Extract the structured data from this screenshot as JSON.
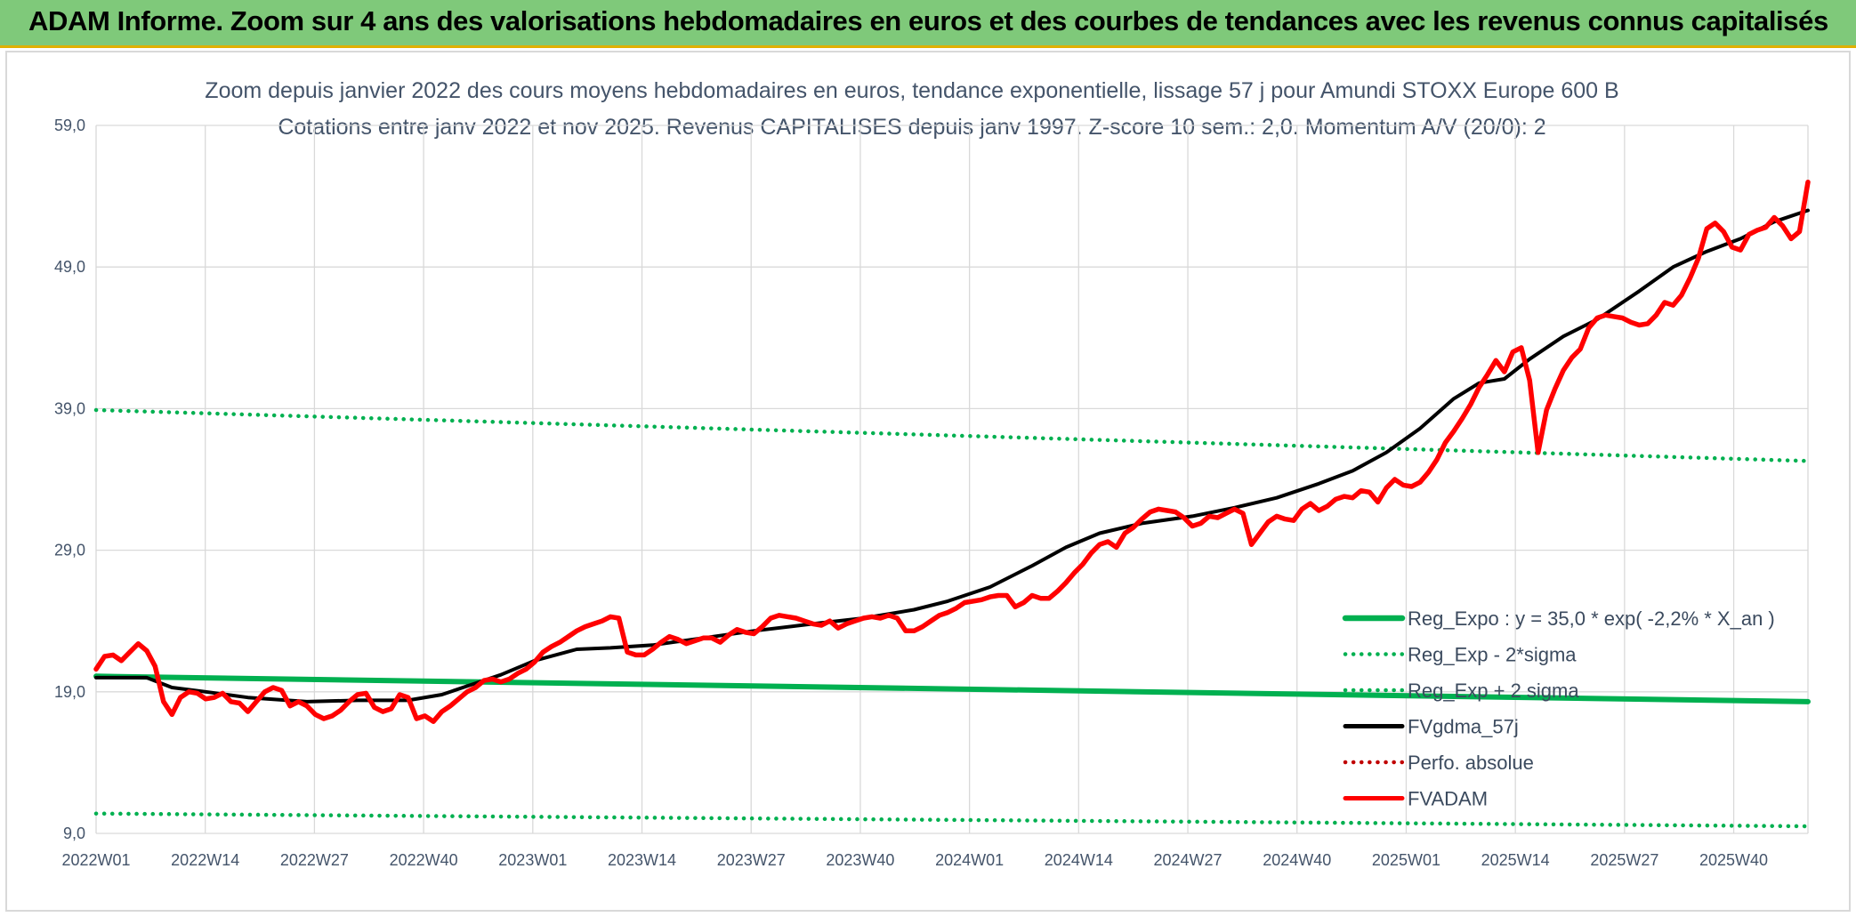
{
  "banner": {
    "title": "ADAM Informe. Zoom sur 4 ans des valorisations hebdomadaires en euros et des courbes de tendances avec les revenus connus capitalisés"
  },
  "colors": {
    "banner_bg": "#7fc97a",
    "reg_expo": "#00b050",
    "fvgdma": "#000000",
    "fvadam": "#ff0000",
    "perfo": "#c00000",
    "grid": "#d9d9d9",
    "text": "#44546a"
  },
  "chart_data": {
    "type": "line",
    "title": "Zoom depuis janvier 2022 des cours moyens hebdomadaires en euros, tendance exponentielle, lissage 57 j pour Amundi STOXX Europe 600 B",
    "subtitle": "Cotations entre janv 2022 et nov 2025. Revenus CAPITALISES depuis janv 1997. Z-score 10 sem.: 2,0. Momentum A/V (20/0): 2",
    "ylim": [
      9,
      59
    ],
    "yticks": [
      "59,0",
      "49,0",
      "39,0",
      "29,0",
      "19,0",
      "9,0"
    ],
    "xticks": [
      "2022W01",
      "2022W14",
      "2022W27",
      "2022W40",
      "2023W01",
      "2023W14",
      "2023W27",
      "2023W40",
      "2024W01",
      "2024W14",
      "2024W27",
      "2024W40",
      "2025W01",
      "2025W14",
      "2025W27",
      "2025W40"
    ],
    "grid": true,
    "legend_position": "right",
    "week_count": 204,
    "series": [
      {
        "name": "Reg_Expo : y = 35,0 * exp( -2,2% *  X_an )",
        "style": "solid",
        "color": "#00b050",
        "points": [
          [
            0,
            20.1
          ],
          [
            203,
            18.3
          ]
        ]
      },
      {
        "name": "Reg_Exp - 2*sigma",
        "style": "dotted",
        "color": "#00b050",
        "points": [
          [
            0,
            10.4
          ],
          [
            203,
            9.5
          ]
        ]
      },
      {
        "name": "Reg_Exp + 2 sigma",
        "style": "dotted",
        "color": "#00b050",
        "points": [
          [
            0,
            38.9
          ],
          [
            203,
            35.3
          ]
        ]
      },
      {
        "name": "FVgdma_57j",
        "style": "solid",
        "color": "#000000",
        "points": [
          [
            0,
            20
          ],
          [
            6,
            20
          ],
          [
            9,
            19.3
          ],
          [
            13,
            19
          ],
          [
            18,
            18.6
          ],
          [
            25,
            18.3
          ],
          [
            31,
            18.4
          ],
          [
            37,
            18.4
          ],
          [
            41,
            18.8
          ],
          [
            44,
            19.4
          ],
          [
            48,
            20.2
          ],
          [
            52,
            21.2
          ],
          [
            57,
            22
          ],
          [
            61,
            22.1
          ],
          [
            66,
            22.3
          ],
          [
            72,
            22.8
          ],
          [
            78,
            23.3
          ],
          [
            85,
            23.8
          ],
          [
            91,
            24.2
          ],
          [
            97,
            24.8
          ],
          [
            101,
            25.4
          ],
          [
            106,
            26.4
          ],
          [
            111,
            27.9
          ],
          [
            115,
            29.2
          ],
          [
            119,
            30.2
          ],
          [
            124,
            30.9
          ],
          [
            130,
            31.4
          ],
          [
            135,
            32
          ],
          [
            140,
            32.7
          ],
          [
            145,
            33.7
          ],
          [
            149,
            34.6
          ],
          [
            153,
            35.9
          ],
          [
            157,
            37.6
          ],
          [
            161,
            39.7
          ],
          [
            164,
            40.8
          ],
          [
            167,
            41.1
          ],
          [
            170,
            42.5
          ],
          [
            174,
            44.1
          ],
          [
            178,
            45.3
          ],
          [
            183,
            47.3
          ],
          [
            187,
            49
          ],
          [
            191,
            50.1
          ],
          [
            195,
            51
          ],
          [
            199,
            52.2
          ],
          [
            203,
            53
          ]
        ]
      },
      {
        "name": "Perfo. absolue",
        "style": "dotted",
        "color": "#c00000",
        "points": []
      },
      {
        "name": "FVADAM",
        "style": "solid",
        "color": "#ff0000",
        "points": [
          [
            0,
            20.6
          ],
          [
            1,
            21.5
          ],
          [
            2,
            21.6
          ],
          [
            3,
            21.2
          ],
          [
            4,
            21.8
          ],
          [
            5,
            22.4
          ],
          [
            6,
            21.9
          ],
          [
            7,
            20.8
          ],
          [
            8,
            18.3
          ],
          [
            9,
            17.4
          ],
          [
            10,
            18.6
          ],
          [
            11,
            19
          ],
          [
            12,
            18.9
          ],
          [
            13,
            18.5
          ],
          [
            14,
            18.6
          ],
          [
            15,
            18.9
          ],
          [
            16,
            18.3
          ],
          [
            17,
            18.2
          ],
          [
            18,
            17.6
          ],
          [
            19,
            18.3
          ],
          [
            20,
            19
          ],
          [
            21,
            19.3
          ],
          [
            22,
            19.1
          ],
          [
            23,
            18
          ],
          [
            24,
            18.3
          ],
          [
            25,
            18
          ],
          [
            26,
            17.4
          ],
          [
            27,
            17.1
          ],
          [
            28,
            17.3
          ],
          [
            29,
            17.7
          ],
          [
            30,
            18.3
          ],
          [
            31,
            18.8
          ],
          [
            32,
            18.9
          ],
          [
            33,
            17.9
          ],
          [
            34,
            17.6
          ],
          [
            35,
            17.8
          ],
          [
            36,
            18.8
          ],
          [
            37,
            18.6
          ],
          [
            38,
            17.1
          ],
          [
            39,
            17.3
          ],
          [
            40,
            16.9
          ],
          [
            41,
            17.6
          ],
          [
            42,
            18
          ],
          [
            43,
            18.5
          ],
          [
            44,
            19
          ],
          [
            45,
            19.3
          ],
          [
            46,
            19.8
          ],
          [
            47,
            19.9
          ],
          [
            48,
            19.7
          ],
          [
            49,
            19.9
          ],
          [
            50,
            20.3
          ],
          [
            51,
            20.6
          ],
          [
            52,
            21.1
          ],
          [
            53,
            21.8
          ],
          [
            54,
            22.2
          ],
          [
            55,
            22.5
          ],
          [
            56,
            22.9
          ],
          [
            57,
            23.3
          ],
          [
            58,
            23.6
          ],
          [
            59,
            23.8
          ],
          [
            60,
            24
          ],
          [
            61,
            24.3
          ],
          [
            62,
            24.2
          ],
          [
            63,
            21.8
          ],
          [
            64,
            21.6
          ],
          [
            65,
            21.6
          ],
          [
            66,
            22
          ],
          [
            67,
            22.5
          ],
          [
            68,
            22.9
          ],
          [
            69,
            22.7
          ],
          [
            70,
            22.4
          ],
          [
            71,
            22.6
          ],
          [
            72,
            22.8
          ],
          [
            73,
            22.8
          ],
          [
            74,
            22.5
          ],
          [
            75,
            23
          ],
          [
            76,
            23.4
          ],
          [
            77,
            23.2
          ],
          [
            78,
            23.1
          ],
          [
            79,
            23.6
          ],
          [
            80,
            24.2
          ],
          [
            81,
            24.4
          ],
          [
            82,
            24.3
          ],
          [
            83,
            24.2
          ],
          [
            84,
            24
          ],
          [
            85,
            23.8
          ],
          [
            86,
            23.7
          ],
          [
            87,
            24
          ],
          [
            88,
            23.5
          ],
          [
            89,
            23.8
          ],
          [
            90,
            24
          ],
          [
            91,
            24.2
          ],
          [
            92,
            24.3
          ],
          [
            93,
            24.2
          ],
          [
            94,
            24.4
          ],
          [
            95,
            24.2
          ],
          [
            96,
            23.3
          ],
          [
            97,
            23.3
          ],
          [
            98,
            23.6
          ],
          [
            99,
            24
          ],
          [
            100,
            24.4
          ],
          [
            101,
            24.6
          ],
          [
            102,
            24.9
          ],
          [
            103,
            25.3
          ],
          [
            104,
            25.4
          ],
          [
            105,
            25.5
          ],
          [
            106,
            25.7
          ],
          [
            107,
            25.8
          ],
          [
            108,
            25.8
          ],
          [
            109,
            25
          ],
          [
            110,
            25.3
          ],
          [
            111,
            25.8
          ],
          [
            112,
            25.6
          ],
          [
            113,
            25.6
          ],
          [
            114,
            26.1
          ],
          [
            115,
            26.7
          ],
          [
            116,
            27.4
          ],
          [
            117,
            28
          ],
          [
            118,
            28.8
          ],
          [
            119,
            29.4
          ],
          [
            120,
            29.6
          ],
          [
            121,
            29.2
          ],
          [
            122,
            30.2
          ],
          [
            123,
            30.6
          ],
          [
            124,
            31.2
          ],
          [
            125,
            31.7
          ],
          [
            126,
            31.9
          ],
          [
            127,
            31.8
          ],
          [
            128,
            31.7
          ],
          [
            129,
            31.3
          ],
          [
            130,
            30.7
          ],
          [
            131,
            30.9
          ],
          [
            132,
            31.4
          ],
          [
            133,
            31.3
          ],
          [
            134,
            31.6
          ],
          [
            135,
            31.9
          ],
          [
            136,
            31.6
          ],
          [
            137,
            29.4
          ],
          [
            138,
            30.2
          ],
          [
            139,
            31
          ],
          [
            140,
            31.4
          ],
          [
            141,
            31.2
          ],
          [
            142,
            31.1
          ],
          [
            143,
            31.9
          ],
          [
            144,
            32.3
          ],
          [
            145,
            31.8
          ],
          [
            146,
            32.1
          ],
          [
            147,
            32.6
          ],
          [
            148,
            32.8
          ],
          [
            149,
            32.7
          ],
          [
            150,
            33.2
          ],
          [
            151,
            33.1
          ],
          [
            152,
            32.4
          ],
          [
            153,
            33.4
          ],
          [
            154,
            34
          ],
          [
            155,
            33.6
          ],
          [
            156,
            33.5
          ],
          [
            157,
            33.8
          ],
          [
            158,
            34.5
          ],
          [
            159,
            35.4
          ],
          [
            160,
            36.6
          ],
          [
            161,
            37.4
          ],
          [
            162,
            38.3
          ],
          [
            163,
            39.3
          ],
          [
            164,
            40.5
          ],
          [
            165,
            41.4
          ],
          [
            166,
            42.4
          ],
          [
            167,
            41.6
          ],
          [
            168,
            43
          ],
          [
            169,
            43.3
          ],
          [
            170,
            41
          ],
          [
            171,
            35.9
          ],
          [
            172,
            38.9
          ],
          [
            173,
            40.4
          ],
          [
            174,
            41.7
          ],
          [
            175,
            42.6
          ],
          [
            176,
            43.2
          ],
          [
            177,
            44.7
          ],
          [
            178,
            45.4
          ],
          [
            179,
            45.6
          ],
          [
            180,
            45.5
          ],
          [
            181,
            45.4
          ],
          [
            182,
            45.1
          ],
          [
            183,
            44.9
          ],
          [
            184,
            45
          ],
          [
            185,
            45.6
          ],
          [
            186,
            46.5
          ],
          [
            187,
            46.3
          ],
          [
            188,
            47
          ],
          [
            189,
            48.2
          ],
          [
            190,
            49.6
          ],
          [
            191,
            51.7
          ],
          [
            192,
            52.1
          ],
          [
            193,
            51.5
          ],
          [
            194,
            50.4
          ],
          [
            195,
            50.2
          ],
          [
            196,
            51.3
          ],
          [
            197,
            51.6
          ],
          [
            198,
            51.8
          ],
          [
            199,
            52.5
          ],
          [
            200,
            51.9
          ],
          [
            201,
            51
          ],
          [
            202,
            51.5
          ],
          [
            203,
            55
          ]
        ]
      }
    ]
  }
}
